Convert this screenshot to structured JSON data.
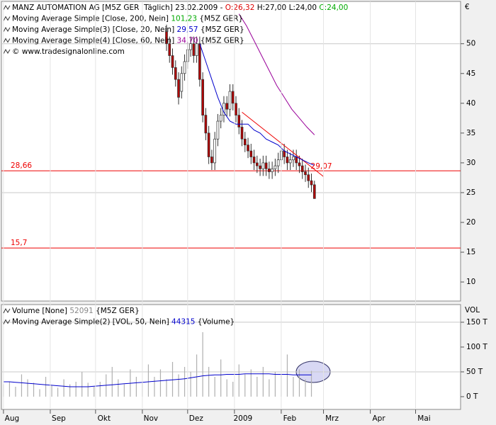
{
  "chart_data": [
    {
      "type": "candlestick",
      "legend": [
        [
          {
            "text": "MANZ AUTOMATION AG [M5Z GER  Täglich] 23.02.2009 - ",
            "color": "#000000"
          },
          {
            "text": "O:26,32",
            "color": "#dd0000"
          },
          {
            "text": " H:27,00 L:24,00 ",
            "color": "#000000"
          },
          {
            "text": "C:24,00",
            "color": "#00aa00"
          }
        ],
        [
          {
            "text": "Moving Average Simple [Close, 200, Nein] ",
            "color": "#000000"
          },
          {
            "text": "101,23",
            "color": "#00aa00"
          },
          {
            "text": " {M5Z GER}",
            "color": "#000000"
          }
        ],
        [
          {
            "text": "Moving Average Simple(3) [Close, 20, Nein] ",
            "color": "#000000"
          },
          {
            "text": "29,57",
            "color": "#0000cc"
          },
          {
            "text": " {M5Z GER}",
            "color": "#000000"
          }
        ],
        [
          {
            "text": "Moving Average Simple(4) [Close, 60, Nein] ",
            "color": "#000000"
          },
          {
            "text": "34,70",
            "color": "#990099"
          },
          {
            "text": " {M5Z GER}",
            "color": "#000000"
          }
        ],
        [
          {
            "text": "© www.tradesignalonline.com",
            "color": "#000000"
          }
        ]
      ],
      "unit_label": "€",
      "xlim": [
        -2.3,
        302.8
      ],
      "ylim": [
        6.8,
        57.1
      ],
      "yticks": [
        10,
        15,
        20,
        25,
        30,
        35,
        40,
        45,
        50
      ],
      "grid": [
        25,
        50
      ],
      "x": [
        108,
        110,
        112,
        114,
        116,
        118,
        120,
        122,
        124,
        126,
        128,
        130,
        132,
        134,
        136,
        138,
        140,
        142,
        144,
        146,
        148,
        150,
        152,
        154,
        156,
        158,
        160,
        162,
        164,
        166,
        168,
        170,
        172,
        174,
        176,
        178,
        180,
        182,
        184,
        186,
        188,
        190,
        192,
        194,
        196,
        198,
        200,
        202,
        204,
        206
      ],
      "open": [
        52,
        50,
        48,
        46,
        44,
        42,
        45,
        47,
        49,
        50,
        48,
        50,
        44,
        38,
        35,
        31,
        30,
        34,
        37,
        38,
        40,
        39,
        42,
        40,
        38,
        36,
        34,
        33,
        32,
        31,
        30,
        29.5,
        29,
        30,
        29,
        28.5,
        29,
        29.5,
        30.5,
        32,
        31,
        30,
        30.5,
        31,
        30,
        29.5,
        28.5,
        28,
        27,
        26.32
      ],
      "high": [
        53.2,
        51.2,
        49.2,
        47.2,
        45.2,
        46.2,
        48.2,
        50.2,
        51.2,
        51.2,
        51.2,
        51.2,
        45.2,
        39.2,
        36.2,
        32.2,
        35.2,
        38.2,
        39.2,
        41.2,
        41.2,
        43.2,
        43.2,
        41.2,
        39.2,
        37.2,
        35.2,
        34.2,
        33.2,
        32.2,
        31.2,
        30.7,
        31.2,
        31.2,
        30.2,
        30.2,
        30.7,
        31.7,
        33.2,
        33.2,
        32.2,
        31.7,
        32.2,
        32.2,
        31.2,
        30.7,
        29.7,
        29.2,
        28.2,
        27
      ],
      "low": [
        48.8,
        46.8,
        44.8,
        42.8,
        39.8,
        40.8,
        43.8,
        45.8,
        47.8,
        46.8,
        46.8,
        42.8,
        36.8,
        33.8,
        29.8,
        28.8,
        28.8,
        32.8,
        35.8,
        36.8,
        37.8,
        37.8,
        38.8,
        36.8,
        34.8,
        32.8,
        31.8,
        30.8,
        29.8,
        28.8,
        28.3,
        27.8,
        27.8,
        27.8,
        27.3,
        27.3,
        27.8,
        28.3,
        29.3,
        29.8,
        28.8,
        28.8,
        29.3,
        28.8,
        28.3,
        27.3,
        26.8,
        25.8,
        25.1,
        24
      ],
      "close": [
        50,
        48,
        46,
        44,
        41,
        45,
        47,
        49,
        50,
        48,
        50,
        44,
        38,
        35,
        31,
        30,
        34,
        37,
        38,
        40,
        39,
        42,
        40,
        38,
        36,
        34,
        33,
        32,
        31,
        30,
        29.5,
        29,
        30,
        29,
        28.5,
        29,
        29.5,
        30.5,
        32,
        31,
        30,
        30.5,
        31,
        30,
        29.5,
        28.5,
        28,
        27,
        26.3,
        24
      ],
      "up_color": "#ffffff",
      "down_color": "#b00000",
      "series": [
        {
          "name": "Moving Average Simple(3) [Close, 20, Nein]",
          "color": "#0000cc",
          "x": [
            130,
            134,
            138,
            142,
            146,
            150,
            154,
            158,
            162,
            166,
            170,
            174,
            178,
            182,
            186,
            190,
            194,
            198,
            202,
            206
          ],
          "values": [
            50,
            47,
            44,
            41,
            38.5,
            37,
            36.5,
            36.5,
            36.5,
            35.5,
            35,
            34,
            33.5,
            33,
            32,
            31.5,
            31,
            30.5,
            30,
            29.57
          ]
        },
        {
          "name": "Moving Average Simple(4) [Close, 60, Nein]",
          "color": "#990099",
          "x": [
            156,
            161,
            166,
            171,
            176,
            181,
            186,
            191,
            196,
            201,
            206
          ],
          "values": [
            55,
            53,
            50.5,
            48,
            45.5,
            43,
            41,
            39,
            37.5,
            36,
            34.7
          ]
        }
      ],
      "levels": [
        {
          "value": 28.66,
          "label": "28,66",
          "color": "#ee0000"
        },
        {
          "value": 15.7,
          "label": "15,7",
          "color": "#ee0000"
        }
      ],
      "trendline": {
        "x": [
          158,
          212
        ],
        "values": [
          38.5,
          27.7
        ],
        "label": "29,07",
        "color": "#ee0000"
      }
    },
    {
      "type": "bar",
      "legend": [
        [
          {
            "text": "Volume [None] ",
            "color": "#000000"
          },
          {
            "text": "52091",
            "color": "#888888"
          },
          {
            "text": " {M5Z GER}",
            "color": "#000000"
          }
        ],
        [
          {
            "text": "Moving Average Simple(2) [VOL, 50, Nein] ",
            "color": "#000000"
          },
          {
            "text": "44315",
            "color": "#0000cc"
          },
          {
            "text": " {Volume}",
            "color": "#000000"
          }
        ]
      ],
      "unit_label": "VOL",
      "xlim": [
        -2.3,
        302.8
      ],
      "ylim": [
        -25.7,
        185.6
      ],
      "yticks": [
        {
          "value": 0,
          "label": "0 T"
        },
        {
          "value": 50,
          "label": "50 T"
        },
        {
          "value": 100,
          "label": "100 T"
        },
        {
          "value": 150,
          "label": "150 T"
        }
      ],
      "grid": [
        50,
        150
      ],
      "xticks": [
        {
          "value": 0,
          "label": "Aug"
        },
        {
          "value": 31,
          "label": "Sep"
        },
        {
          "value": 61,
          "label": "Okt"
        },
        {
          "value": 92,
          "label": "Nov"
        },
        {
          "value": 122,
          "label": "Dez"
        },
        {
          "value": 153,
          "label": "2009"
        },
        {
          "value": 184,
          "label": "Feb"
        },
        {
          "value": 212,
          "label": "Mrz"
        },
        {
          "value": 243,
          "label": "Apr"
        },
        {
          "value": 273,
          "label": "Mai"
        }
      ],
      "x": [
        0,
        4,
        8,
        12,
        16,
        20,
        24,
        28,
        32,
        36,
        40,
        44,
        48,
        52,
        56,
        60,
        64,
        68,
        72,
        76,
        80,
        84,
        88,
        92,
        96,
        100,
        104,
        108,
        112,
        116,
        120,
        124,
        128,
        132,
        136,
        140,
        144,
        148,
        152,
        156,
        160,
        164,
        168,
        172,
        176,
        180,
        184,
        188,
        192,
        196,
        200,
        204
      ],
      "values": [
        25,
        30,
        20,
        45,
        35,
        28,
        15,
        40,
        22,
        18,
        35,
        25,
        30,
        50,
        28,
        20,
        30,
        45,
        60,
        35,
        25,
        55,
        40,
        30,
        65,
        40,
        55,
        35,
        70,
        45,
        60,
        50,
        85,
        130,
        60,
        40,
        75,
        35,
        30,
        65,
        45,
        55,
        40,
        60,
        35,
        50,
        45,
        85,
        40,
        55,
        35,
        52
      ],
      "color": "#b0b0b0",
      "series": [
        {
          "name": "Moving Average Simple(2) [VOL, 50, Nein]",
          "color": "#0000cc",
          "values": [
            30,
            30,
            29,
            28,
            27,
            26,
            25,
            24,
            23,
            22,
            21,
            20,
            20,
            20,
            20,
            21,
            22,
            23,
            24,
            25,
            26,
            27,
            28,
            29,
            30,
            31,
            32,
            33,
            34,
            35,
            36,
            38,
            40,
            42,
            43,
            44,
            44,
            45,
            45,
            45,
            46,
            46,
            46,
            46,
            46,
            45,
            45,
            45,
            44,
            44,
            44,
            44
          ]
        }
      ]
    }
  ]
}
